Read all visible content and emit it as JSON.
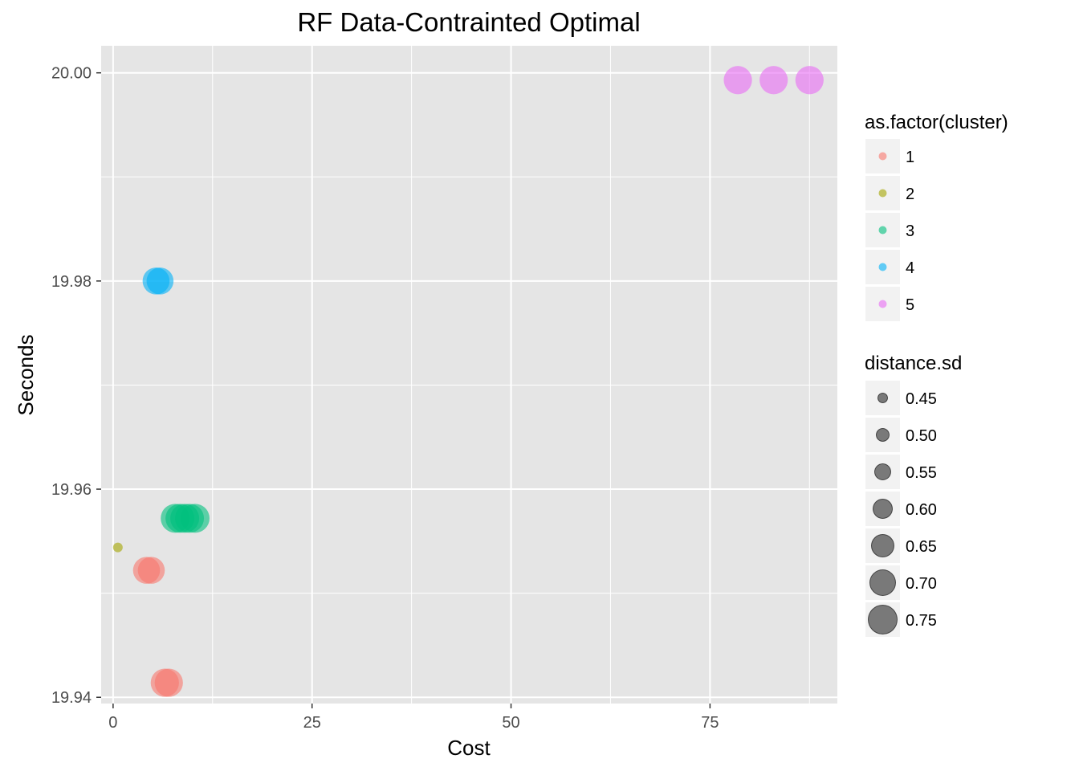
{
  "chart_data": {
    "type": "scatter",
    "title": "RF Data-Contrainted Optimal",
    "xlabel": "Cost",
    "ylabel": "Seconds",
    "xlim": [
      -1.5,
      91
    ],
    "ylim": [
      19.9394,
      20.0026
    ],
    "x_ticks": [
      0,
      25,
      50,
      75
    ],
    "x_tick_labels": [
      "0",
      "25",
      "50",
      "75"
    ],
    "y_ticks": [
      19.94,
      19.96,
      19.98,
      20.0
    ],
    "y_tick_labels": [
      "19.94",
      "19.96",
      "19.98",
      "20.00"
    ],
    "grid": true,
    "panel_background": "#e5e5e5",
    "point_alpha": 0.6,
    "color_legend": {
      "title": "as.factor(cluster)",
      "placement": "right",
      "entries": [
        {
          "label": "1",
          "color": "#F8766D"
        },
        {
          "label": "2",
          "color": "#A3A500"
        },
        {
          "label": "3",
          "color": "#00BF7D"
        },
        {
          "label": "4",
          "color": "#00B0F6"
        },
        {
          "label": "5",
          "color": "#E76BF3"
        }
      ]
    },
    "size_legend": {
      "title": "distance.sd",
      "placement": "right",
      "entries": [
        {
          "label": "0.45",
          "value": 0.45
        },
        {
          "label": "0.50",
          "value": 0.5
        },
        {
          "label": "0.55",
          "value": 0.55
        },
        {
          "label": "0.60",
          "value": 0.6
        },
        {
          "label": "0.65",
          "value": 0.65
        },
        {
          "label": "0.70",
          "value": 0.7
        },
        {
          "label": "0.75",
          "value": 0.75
        }
      ]
    },
    "series": [
      {
        "name": "1",
        "color": "#F8766D",
        "points": [
          {
            "x": 4.2,
            "y": 19.9522,
            "size": 0.72
          },
          {
            "x": 4.8,
            "y": 19.9522,
            "size": 0.72
          },
          {
            "x": 6.5,
            "y": 19.9414,
            "size": 0.74
          },
          {
            "x": 7.0,
            "y": 19.9414,
            "size": 0.74
          }
        ]
      },
      {
        "name": "2",
        "color": "#A3A500",
        "points": [
          {
            "x": 0.6,
            "y": 19.9544,
            "size": 0.45
          }
        ]
      },
      {
        "name": "3",
        "color": "#00BF7D",
        "points": [
          {
            "x": 7.8,
            "y": 19.9572,
            "size": 0.75
          },
          {
            "x": 8.4,
            "y": 19.9572,
            "size": 0.75
          },
          {
            "x": 9.0,
            "y": 19.9572,
            "size": 0.75
          },
          {
            "x": 9.6,
            "y": 19.9572,
            "size": 0.75
          },
          {
            "x": 10.3,
            "y": 19.9572,
            "size": 0.75
          }
        ]
      },
      {
        "name": "4",
        "color": "#00B0F6",
        "points": [
          {
            "x": 5.4,
            "y": 19.98,
            "size": 0.72
          },
          {
            "x": 5.9,
            "y": 19.98,
            "size": 0.72
          }
        ]
      },
      {
        "name": "5",
        "color": "#E76BF3",
        "points": [
          {
            "x": 78.5,
            "y": 19.9993,
            "size": 0.74
          },
          {
            "x": 83.0,
            "y": 19.9993,
            "size": 0.74
          },
          {
            "x": 87.5,
            "y": 19.9993,
            "size": 0.74
          }
        ]
      }
    ]
  }
}
